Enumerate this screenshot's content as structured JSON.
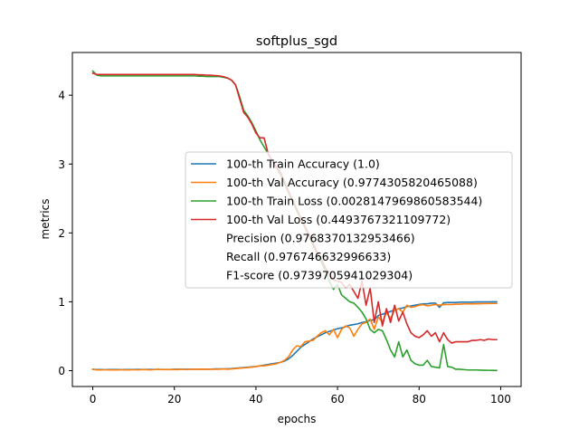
{
  "chart_data": {
    "type": "line",
    "title": "softplus_sgd",
    "xlabel": "epochs",
    "ylabel": "metrics",
    "xlim": [
      -5,
      105
    ],
    "ylim": [
      -0.23,
      4.62
    ],
    "x_ticks": [
      0,
      20,
      40,
      60,
      80,
      100
    ],
    "y_ticks": [
      0,
      1,
      2,
      3,
      4
    ],
    "grid": false,
    "legend_position": "center-right",
    "colors": {
      "train_accuracy": "#1f77b4",
      "val_accuracy": "#ff7f0e",
      "train_loss": "#2ca02c",
      "val_loss": "#d62728"
    },
    "series": [
      {
        "name": "100-th Train Accuracy (1.0)",
        "color": "#1f77b4",
        "values": [
          0.02,
          0.015,
          0.015,
          0.015,
          0.015,
          0.015,
          0.015,
          0.015,
          0.015,
          0.015,
          0.018,
          0.018,
          0.018,
          0.018,
          0.018,
          0.018,
          0.018,
          0.018,
          0.018,
          0.018,
          0.02,
          0.02,
          0.02,
          0.02,
          0.02,
          0.02,
          0.02,
          0.02,
          0.02,
          0.022,
          0.025,
          0.025,
          0.025,
          0.028,
          0.03,
          0.035,
          0.04,
          0.045,
          0.05,
          0.055,
          0.06,
          0.07,
          0.08,
          0.09,
          0.1,
          0.11,
          0.12,
          0.14,
          0.17,
          0.22,
          0.28,
          0.34,
          0.38,
          0.42,
          0.46,
          0.49,
          0.52,
          0.55,
          0.57,
          0.59,
          0.61,
          0.62,
          0.64,
          0.66,
          0.67,
          0.68,
          0.7,
          0.71,
          0.73,
          0.74,
          0.8,
          0.82,
          0.84,
          0.86,
          0.88,
          0.9,
          0.91,
          0.93,
          0.94,
          0.95,
          0.96,
          0.97,
          0.97,
          0.98,
          0.98,
          0.92,
          0.985,
          0.99,
          0.99,
          0.99,
          0.995,
          0.995,
          0.995,
          0.995,
          0.998,
          0.998,
          0.999,
          0.999,
          1.0,
          1.0
        ]
      },
      {
        "name": "100-th Val Accuracy (0.9774305820465088)",
        "color": "#ff7f0e",
        "values": [
          0.02,
          0.01,
          0.01,
          0.015,
          0.01,
          0.01,
          0.01,
          0.015,
          0.01,
          0.01,
          0.015,
          0.01,
          0.015,
          0.015,
          0.01,
          0.015,
          0.02,
          0.015,
          0.015,
          0.015,
          0.015,
          0.015,
          0.02,
          0.015,
          0.02,
          0.02,
          0.02,
          0.02,
          0.02,
          0.02,
          0.02,
          0.02,
          0.025,
          0.02,
          0.025,
          0.03,
          0.035,
          0.04,
          0.045,
          0.05,
          0.06,
          0.07,
          0.07,
          0.08,
          0.09,
          0.1,
          0.12,
          0.15,
          0.2,
          0.3,
          0.36,
          0.35,
          0.42,
          0.43,
          0.44,
          0.5,
          0.55,
          0.58,
          0.52,
          0.6,
          0.48,
          0.6,
          0.65,
          0.62,
          0.5,
          0.6,
          0.68,
          0.7,
          0.75,
          0.6,
          0.78,
          0.7,
          0.85,
          0.75,
          0.88,
          0.9,
          0.85,
          0.95,
          0.92,
          0.93,
          0.95,
          0.96,
          0.94,
          0.95,
          0.96,
          0.95,
          0.96,
          0.96,
          0.96,
          0.965,
          0.965,
          0.97,
          0.97,
          0.97,
          0.972,
          0.972,
          0.975,
          0.975,
          0.976,
          0.977
        ]
      },
      {
        "name": "100-th Train Loss (0.0028147969860583544)",
        "color": "#2ca02c",
        "values": [
          4.35,
          4.29,
          4.28,
          4.28,
          4.28,
          4.28,
          4.28,
          4.28,
          4.28,
          4.28,
          4.28,
          4.28,
          4.28,
          4.28,
          4.28,
          4.28,
          4.28,
          4.28,
          4.28,
          4.28,
          4.28,
          4.28,
          4.28,
          4.28,
          4.28,
          4.28,
          4.275,
          4.275,
          4.27,
          4.27,
          4.27,
          4.27,
          4.26,
          4.25,
          4.22,
          4.15,
          3.98,
          3.78,
          3.7,
          3.6,
          3.48,
          3.35,
          3.25,
          3.15,
          3.05,
          2.95,
          2.85,
          2.72,
          2.58,
          2.45,
          2.32,
          2.2,
          2.08,
          1.95,
          1.82,
          1.7,
          1.58,
          1.45,
          1.3,
          1.18,
          1.25,
          1.1,
          1.05,
          1.0,
          0.98,
          0.92,
          0.85,
          0.75,
          0.6,
          0.55,
          0.6,
          0.58,
          0.45,
          0.3,
          0.2,
          0.42,
          0.2,
          0.3,
          0.15,
          0.1,
          0.08,
          0.08,
          0.15,
          0.06,
          0.05,
          0.04,
          0.38,
          0.06,
          0.05,
          0.02,
          0.02,
          0.015,
          0.01,
          0.01,
          0.01,
          0.008,
          0.006,
          0.005,
          0.004,
          0.003
        ]
      },
      {
        "name": "100-th Val Loss (0.4493767321109772)",
        "color": "#d62728",
        "values": [
          4.32,
          4.3,
          4.3,
          4.3,
          4.3,
          4.3,
          4.3,
          4.3,
          4.3,
          4.3,
          4.3,
          4.3,
          4.3,
          4.3,
          4.3,
          4.3,
          4.3,
          4.3,
          4.3,
          4.3,
          4.3,
          4.3,
          4.3,
          4.3,
          4.3,
          4.3,
          4.295,
          4.295,
          4.29,
          4.29,
          4.285,
          4.28,
          4.27,
          4.25,
          4.22,
          4.15,
          3.95,
          3.75,
          3.68,
          3.58,
          3.45,
          3.38,
          3.38,
          3.15,
          3.05,
          2.95,
          2.88,
          2.75,
          2.6,
          2.48,
          2.35,
          2.22,
          2.1,
          1.98,
          1.85,
          1.72,
          1.62,
          1.5,
          1.4,
          1.32,
          1.3,
          1.28,
          1.2,
          1.25,
          1.15,
          1.05,
          1.3,
          0.95,
          1.2,
          0.7,
          1.0,
          0.65,
          0.9,
          0.7,
          0.95,
          0.72,
          0.85,
          0.68,
          0.55,
          0.5,
          0.48,
          0.52,
          0.58,
          0.5,
          0.55,
          0.42,
          0.55,
          0.45,
          0.4,
          0.42,
          0.42,
          0.42,
          0.42,
          0.44,
          0.44,
          0.45,
          0.44,
          0.46,
          0.45,
          0.45
        ]
      },
      {
        "name": "Precision (0.9768370132953466)",
        "color": "none",
        "values": []
      },
      {
        "name": "Recall (0.976746632996633)",
        "color": "none",
        "values": []
      },
      {
        "name": "F1-score (0.9739705941029304)",
        "color": "none",
        "values": []
      }
    ]
  }
}
